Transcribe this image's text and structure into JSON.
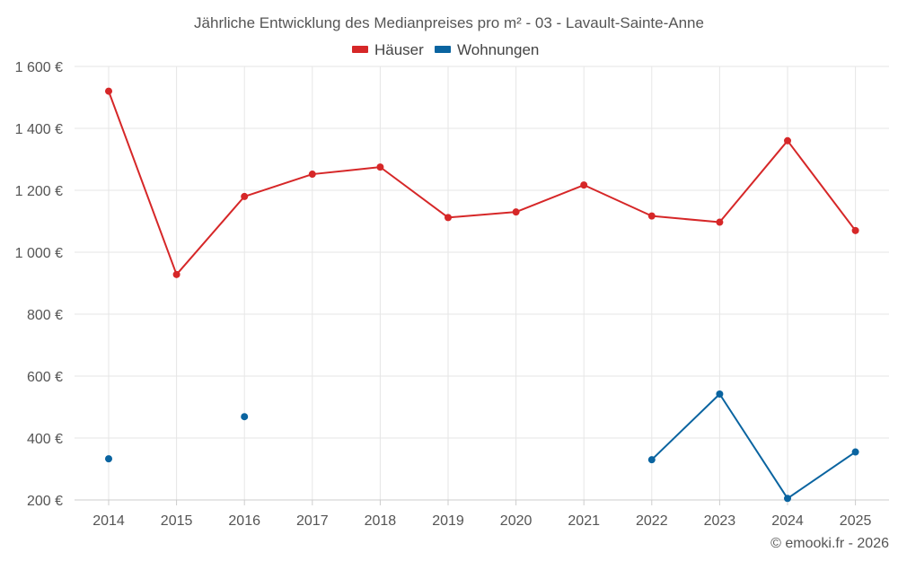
{
  "chart_data": {
    "type": "line",
    "title": "Jährliche Entwicklung des Medianpreises pro m² - 03 - Lavault-Sainte-Anne",
    "categories": [
      "2014",
      "2015",
      "2016",
      "2017",
      "2018",
      "2019",
      "2020",
      "2021",
      "2022",
      "2023",
      "2024",
      "2025"
    ],
    "ylim": [
      200,
      1600
    ],
    "yticks": [
      200,
      400,
      600,
      800,
      1000,
      1200,
      1400,
      1600
    ],
    "ytick_labels": [
      "200 €",
      "400 €",
      "600 €",
      "800 €",
      "1 000 €",
      "1 200 €",
      "1 400 €",
      "1 600 €"
    ],
    "grid": true,
    "legend_position": "top-center",
    "series": [
      {
        "name": "Häuser",
        "color": "#d62728",
        "values": [
          1520,
          928,
          1180,
          1252,
          1275,
          1112,
          1130,
          1217,
          1117,
          1097,
          1360,
          1070
        ]
      },
      {
        "name": "Wohnungen",
        "color": "#0a64a0",
        "values": [
          333,
          null,
          469,
          null,
          null,
          null,
          null,
          null,
          330,
          542,
          205,
          355
        ]
      }
    ]
  },
  "credit": "© emooki.fr - 2026"
}
